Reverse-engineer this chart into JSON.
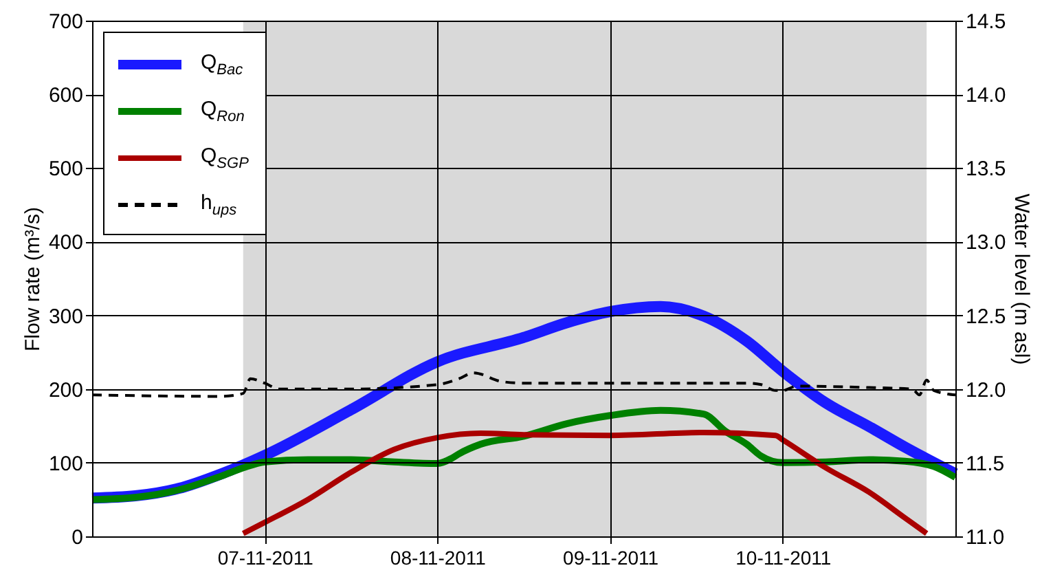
{
  "chart_data": {
    "type": "line",
    "ylabel": "Flow rate (m³/s)",
    "y2label": "Water level (m asl)",
    "xlim": [
      "2011-11-06T00:00",
      "2011-11-11T00:00"
    ],
    "xticks": [
      {
        "value": "2011-11-07T00:00",
        "label": "07-11-2011"
      },
      {
        "value": "2011-11-08T00:00",
        "label": "08-11-2011"
      },
      {
        "value": "2011-11-09T00:00",
        "label": "09-11-2011"
      },
      {
        "value": "2011-11-10T00:00",
        "label": "10-11-2011"
      }
    ],
    "ylim": [
      0,
      700
    ],
    "yticks": [
      0,
      100,
      200,
      300,
      400,
      500,
      600,
      700
    ],
    "y2lim": [
      11,
      14.5
    ],
    "y2ticks": [
      {
        "value": 11,
        "label": "11.0"
      },
      {
        "value": 11.5,
        "label": "11.5"
      },
      {
        "value": 12,
        "label": "12.0"
      },
      {
        "value": 12.5,
        "label": "12.5"
      },
      {
        "value": 13,
        "label": "13.0"
      },
      {
        "value": 13.5,
        "label": "13.5"
      },
      {
        "value": 14,
        "label": "14.0"
      },
      {
        "value": 14.5,
        "label": "14.5"
      }
    ],
    "grid": true,
    "legend": "top left",
    "bands": [
      {
        "axis": "x",
        "from": "2011-11-06T21:00",
        "to": "2011-11-10T20:00",
        "color": "#d9d9d9"
      }
    ],
    "series": [
      {
        "name": "Q$_{Bac}$",
        "color": "#1a1aff",
        "x": [
          "2011-11-06T00:00",
          "2011-11-06T06:00",
          "2011-11-06T12:00",
          "2011-11-06T18:00",
          "2011-11-07T00:00",
          "2011-11-07T12:00",
          "2011-11-08T00:00",
          "2011-11-08T12:00",
          "2011-11-08T18:00",
          "2011-11-09T00:00",
          "2011-11-09T07:00",
          "2011-11-09T13:00",
          "2011-11-09T19:00",
          "2011-11-10T00:00",
          "2011-11-10T06:00",
          "2011-11-10T12:00",
          "2011-11-10T17:00",
          "2011-11-11T00:00"
        ],
        "values": [
          52,
          55,
          65,
          85,
          110,
          172,
          237,
          270,
          290,
          305,
          312,
          299,
          265,
          224,
          181,
          149,
          121,
          85
        ]
      },
      {
        "name": "Q$_{Ron}$",
        "color": "#008000",
        "x": [
          "2011-11-06T00:00",
          "2011-11-06T06:00",
          "2011-11-06T12:00",
          "2011-11-06T18:00",
          "2011-11-06T21:00",
          "2011-11-07T00:00",
          "2011-11-07T06:00",
          "2011-11-07T12:00",
          "2011-11-07T18:00",
          "2011-11-08T00:00",
          "2011-11-08T02:00",
          "2011-11-08T03:00",
          "2011-11-08T06:00",
          "2011-11-08T12:00",
          "2011-11-08T18:00",
          "2011-11-09T00:00",
          "2011-11-09T07:00",
          "2011-11-09T13:00",
          "2011-11-09T16:00",
          "2011-11-09T19:00",
          "2011-11-09T21:00",
          "2011-11-10T00:00",
          "2011-11-10T06:00",
          "2011-11-10T12:00",
          "2011-11-10T17:00",
          "2011-11-10T21:00",
          "2011-11-11T00:00"
        ],
        "values": [
          50,
          53,
          63,
          82,
          93,
          101,
          104,
          104,
          101,
          99,
          106,
          112,
          125,
          136,
          153,
          164,
          171,
          166,
          143,
          125,
          109,
          100,
          101,
          104,
          102,
          95,
          80
        ]
      },
      {
        "name": "Q$_{SGP}$",
        "color": "#aa0000",
        "x": [
          "2011-11-06T21:00",
          "2011-11-07T00:00",
          "2011-11-07T06:00",
          "2011-11-07T12:00",
          "2011-11-07T18:00",
          "2011-11-08T00:00",
          "2011-11-08T06:00",
          "2011-11-08T12:00",
          "2011-11-09T00:00",
          "2011-11-09T13:00",
          "2011-11-09T23:00",
          "2011-11-10T00:00",
          "2011-11-10T06:00",
          "2011-11-10T12:00",
          "2011-11-10T17:00",
          "2011-11-10T20:00"
        ],
        "values": [
          4,
          19,
          50,
          87,
          118,
          134,
          140,
          138,
          137,
          141,
          137,
          131,
          93,
          60,
          25,
          4
        ]
      },
      {
        "name": "h$_{ups}$",
        "color": "#000000",
        "axis": "y2",
        "line_style": "dashed",
        "x": [
          "2011-11-06T00:00",
          "2011-11-06T18:00",
          "2011-11-06T21:00",
          "2011-11-06T22:00",
          "2011-11-07T00:00",
          "2011-11-07T02:00",
          "2011-11-07T12:00",
          "2011-11-08T00:00",
          "2011-11-08T03:00",
          "2011-11-08T05:00",
          "2011-11-08T09:00",
          "2011-11-08T12:00",
          "2011-11-09T00:00",
          "2011-11-09T19:00",
          "2011-11-09T21:00",
          "2011-11-09T23:00",
          "2011-11-10T00:00",
          "2011-11-10T02:00",
          "2011-11-10T12:00",
          "2011-11-10T18:00",
          "2011-11-10T19:00",
          "2011-11-10T20:00",
          "2011-11-10T21:00",
          "2011-11-11T00:00"
        ],
        "values": [
          11.96,
          11.95,
          11.97,
          12.07,
          12.04,
          12.0,
          12.0,
          12.03,
          12.07,
          12.11,
          12.05,
          12.04,
          12.04,
          12.04,
          12.03,
          11.99,
          11.99,
          12.02,
          12.01,
          12.0,
          11.96,
          12.06,
          11.99,
          11.96
        ]
      }
    ]
  }
}
